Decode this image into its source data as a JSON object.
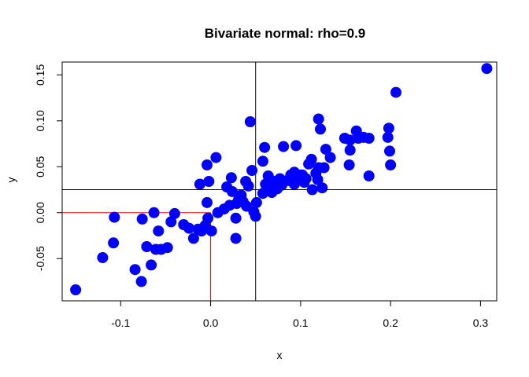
{
  "chart_data": {
    "type": "scatter",
    "title": "Bivariate normal: rho=0.9",
    "xlabel": "x",
    "ylabel": "y",
    "xlim": [
      -0.165,
      0.318
    ],
    "ylim": [
      -0.096,
      0.164
    ],
    "xticks": [
      -0.1,
      0.0,
      0.1,
      0.2,
      0.3
    ],
    "xtick_labels": [
      "-0.1",
      "0.0",
      "0.1",
      "0.2",
      "0.3"
    ],
    "yticks": [
      -0.05,
      0.0,
      0.05,
      0.1,
      0.15
    ],
    "ytick_labels": [
      "-0.05",
      "0.00",
      "0.05",
      "0.10",
      "0.15"
    ],
    "grid": false,
    "point_color": "#0000ff",
    "reference_lines": [
      {
        "orientation": "vertical",
        "x": 0.05,
        "color": "#000000"
      },
      {
        "orientation": "horizontal",
        "y": 0.025,
        "color": "#000000"
      },
      {
        "orientation": "vertical-segment",
        "x": 0.0,
        "y_to": 0.0,
        "color": "#ff0000"
      },
      {
        "orientation": "horizontal-segment",
        "y": 0.0,
        "x_to": 0.0,
        "color": "#ff0000"
      }
    ],
    "points": [
      [
        -0.15,
        -0.084
      ],
      [
        -0.12,
        -0.049
      ],
      [
        -0.107,
        -0.005
      ],
      [
        -0.108,
        -0.033
      ],
      [
        -0.084,
        -0.062
      ],
      [
        -0.077,
        -0.075
      ],
      [
        -0.076,
        -0.007
      ],
      [
        -0.071,
        -0.037
      ],
      [
        -0.066,
        -0.057
      ],
      [
        -0.063,
        0.0
      ],
      [
        -0.061,
        -0.04
      ],
      [
        -0.058,
        -0.02
      ],
      [
        -0.055,
        -0.04
      ],
      [
        -0.048,
        -0.038
      ],
      [
        -0.044,
        -0.01
      ],
      [
        -0.04,
        -0.001
      ],
      [
        -0.03,
        -0.013
      ],
      [
        -0.024,
        -0.017
      ],
      [
        -0.019,
        -0.028
      ],
      [
        -0.014,
        -0.018
      ],
      [
        -0.01,
        -0.02
      ],
      [
        -0.006,
        -0.014
      ],
      [
        -0.012,
        0.031
      ],
      [
        -0.004,
        0.011
      ],
      [
        -0.002,
        0.034
      ],
      [
        -0.004,
        0.052
      ],
      [
        -0.003,
        -0.006
      ],
      [
        0.001,
        -0.02
      ],
      [
        0.006,
        0.06
      ],
      [
        0.008,
        0.0
      ],
      [
        0.015,
        0.004
      ],
      [
        0.018,
        0.028
      ],
      [
        0.021,
        0.008
      ],
      [
        0.023,
        0.038
      ],
      [
        0.024,
        0.023
      ],
      [
        0.029,
        0.01
      ],
      [
        0.028,
        -0.006
      ],
      [
        0.028,
        -0.028
      ],
      [
        0.031,
        0.014
      ],
      [
        0.034,
        0.019
      ],
      [
        0.036,
        0.012
      ],
      [
        0.039,
        0.034
      ],
      [
        0.04,
        0.007
      ],
      [
        0.042,
        0.029
      ],
      [
        0.044,
        0.099
      ],
      [
        0.046,
        0.046
      ],
      [
        0.048,
        0.001
      ],
      [
        0.05,
        -0.004
      ],
      [
        0.051,
        0.011
      ],
      [
        0.058,
        0.021
      ],
      [
        0.058,
        0.056
      ],
      [
        0.06,
        0.071
      ],
      [
        0.061,
        0.031
      ],
      [
        0.063,
        0.024
      ],
      [
        0.064,
        0.04
      ],
      [
        0.066,
        0.036
      ],
      [
        0.068,
        0.022
      ],
      [
        0.071,
        0.028
      ],
      [
        0.072,
        0.034
      ],
      [
        0.074,
        0.026
      ],
      [
        0.077,
        0.037
      ],
      [
        0.079,
        0.03
      ],
      [
        0.081,
        0.072
      ],
      [
        0.086,
        0.035
      ],
      [
        0.089,
        0.041
      ],
      [
        0.091,
        0.034
      ],
      [
        0.093,
        0.044
      ],
      [
        0.093,
        0.031
      ],
      [
        0.095,
        0.073
      ],
      [
        0.098,
        0.037
      ],
      [
        0.1,
        0.041
      ],
      [
        0.102,
        0.041
      ],
      [
        0.104,
        0.033
      ],
      [
        0.106,
        0.037
      ],
      [
        0.109,
        0.053
      ],
      [
        0.112,
        0.058
      ],
      [
        0.113,
        0.025
      ],
      [
        0.117,
        0.043
      ],
      [
        0.119,
        0.036
      ],
      [
        0.12,
        0.049
      ],
      [
        0.12,
        0.102
      ],
      [
        0.122,
        0.091
      ],
      [
        0.124,
        0.027
      ],
      [
        0.126,
        0.049
      ],
      [
        0.128,
        0.069
      ],
      [
        0.133,
        0.06
      ],
      [
        0.149,
        0.081
      ],
      [
        0.154,
        0.052
      ],
      [
        0.155,
        0.079
      ],
      [
        0.155,
        0.068
      ],
      [
        0.162,
        0.089
      ],
      [
        0.164,
        0.081
      ],
      [
        0.17,
        0.082
      ],
      [
        0.176,
        0.04
      ],
      [
        0.176,
        0.081
      ],
      [
        0.197,
        0.082
      ],
      [
        0.198,
        0.092
      ],
      [
        0.199,
        0.067
      ],
      [
        0.2,
        0.052
      ],
      [
        0.206,
        0.131
      ],
      [
        0.307,
        0.157
      ]
    ]
  }
}
